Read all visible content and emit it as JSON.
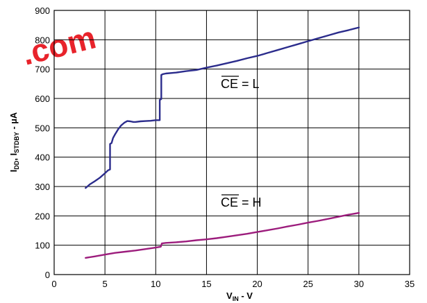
{
  "chart_data": {
    "type": "line",
    "x_label": {
      "main": "V",
      "sub": "IN",
      "suffix": " - V"
    },
    "y_label": {
      "p1": "I",
      "s1": "DD",
      "p2": ", I",
      "s2": "STDBY",
      "p3": " - µA"
    },
    "x_ticks": [
      "0",
      "5",
      "10",
      "15",
      "20",
      "25",
      "30",
      "35"
    ],
    "y_ticks": [
      "0",
      "100",
      "200",
      "300",
      "400",
      "500",
      "600",
      "700",
      "800",
      "900"
    ],
    "xlim": [
      0,
      35
    ],
    "ylim": [
      0,
      900
    ],
    "grid": true,
    "annotations": [
      {
        "over": "CE",
        "rest": " =  L"
      },
      {
        "over": "CE",
        "rest": " =  H"
      }
    ],
    "series": [
      {
        "color": "#2b2c8c",
        "x": [
          3.1,
          3.5,
          4.0,
          4.5,
          5.0,
          5.3,
          5.5,
          5.5,
          5.65,
          5.8,
          6.0,
          6.3,
          6.6,
          6.9,
          7.2,
          7.5,
          7.8,
          8.0,
          8.5,
          9.0,
          9.5,
          10.0,
          10.4,
          10.4,
          10.55,
          10.55,
          10.7,
          11.0,
          12.0,
          13.0,
          14.0,
          15.0,
          16.0,
          17.0,
          18.0,
          19.0,
          20.0,
          21.0,
          22.0,
          23.0,
          24.0,
          25.0,
          26.0,
          27.0,
          28.0,
          29.0,
          30.0
        ],
        "y": [
          295,
          307,
          318,
          330,
          345,
          355,
          358,
          445,
          448,
          465,
          478,
          495,
          508,
          517,
          523,
          522,
          520,
          520,
          522,
          523,
          524,
          526,
          526,
          595,
          598,
          680,
          683,
          685,
          688,
          693,
          697,
          705,
          712,
          720,
          728,
          737,
          745,
          755,
          765,
          775,
          785,
          795,
          805,
          815,
          825,
          833,
          842
        ]
      },
      {
        "color": "#9c1c7c",
        "x": [
          3.1,
          4.0,
          5.0,
          6.0,
          7.0,
          8.0,
          9.0,
          10.0,
          10.5,
          10.6,
          11.0,
          12.0,
          13.0,
          14.0,
          15.0,
          16.0,
          17.0,
          18.0,
          19.0,
          20.0,
          21.0,
          22.0,
          23.0,
          24.0,
          25.0,
          26.0,
          27.0,
          28.0,
          29.0,
          30.0
        ],
        "y": [
          57,
          62,
          68,
          74,
          78,
          82,
          87,
          92,
          95,
          106,
          108,
          110,
          113,
          117,
          120,
          124,
          129,
          134,
          139,
          145,
          151,
          157,
          164,
          170,
          177,
          183,
          190,
          197,
          204,
          210
        ]
      }
    ]
  },
  "watermark": {
    "text": ".com"
  }
}
